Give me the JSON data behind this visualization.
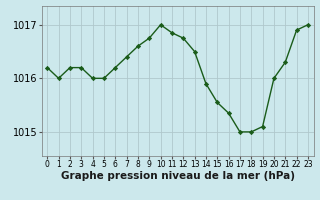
{
  "x": [
    0,
    1,
    2,
    3,
    4,
    5,
    6,
    7,
    8,
    9,
    10,
    11,
    12,
    13,
    14,
    15,
    16,
    17,
    18,
    19,
    20,
    21,
    22,
    23
  ],
  "y": [
    1016.2,
    1016.0,
    1016.2,
    1016.2,
    1016.0,
    1016.0,
    1016.2,
    1016.4,
    1016.6,
    1016.75,
    1017.0,
    1016.85,
    1016.75,
    1016.5,
    1015.9,
    1015.55,
    1015.35,
    1015.0,
    1015.0,
    1015.1,
    1016.0,
    1016.3,
    1016.9,
    1017.0
  ],
  "line_color": "#1a5c1a",
  "marker": "D",
  "marker_size": 2.2,
  "bg_color": "#cce8ec",
  "grid_color": "#b0c8cc",
  "xlabel": "Graphe pression niveau de la mer (hPa)",
  "xlabel_fontsize": 7.5,
  "yticks": [
    1015,
    1016,
    1017
  ],
  "ylim": [
    1014.55,
    1017.35
  ],
  "xlim": [
    -0.5,
    23.5
  ],
  "tick_fontsize": 7,
  "line_width": 1.0
}
